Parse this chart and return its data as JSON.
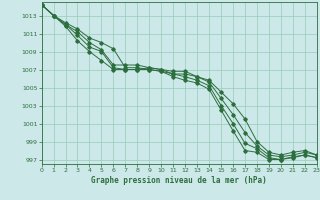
{
  "bg_color": "#cce8e8",
  "grid_color": "#99ccbb",
  "line_color": "#2d6e3e",
  "title": "Graphe pression niveau de la mer (hPa)",
  "xlim": [
    0,
    23
  ],
  "ylim": [
    996.5,
    1014.5
  ],
  "yticks": [
    997,
    999,
    1001,
    1003,
    1005,
    1007,
    1009,
    1011,
    1013
  ],
  "xticks": [
    0,
    1,
    2,
    3,
    4,
    5,
    6,
    7,
    8,
    9,
    10,
    11,
    12,
    13,
    14,
    15,
    16,
    17,
    18,
    19,
    20,
    21,
    22,
    23
  ],
  "series": [
    [
      1014.2,
      1013.0,
      1012.2,
      1011.5,
      1010.5,
      1010.0,
      1009.3,
      1007.2,
      1007.2,
      1007.0,
      1006.8,
      1006.5,
      1006.5,
      1006.2,
      1005.8,
      1004.5,
      1003.2,
      1001.5,
      999.0,
      997.8,
      997.5,
      997.8,
      998.0,
      997.5
    ],
    [
      1014.2,
      1013.0,
      1012.0,
      1011.2,
      1010.0,
      1009.2,
      1007.5,
      1007.5,
      1007.5,
      1007.2,
      1007.0,
      1006.8,
      1006.8,
      1006.2,
      1005.6,
      1003.8,
      1002.0,
      1000.0,
      998.5,
      997.5,
      997.3,
      997.5,
      997.8,
      997.5
    ],
    [
      1014.2,
      1013.0,
      1012.0,
      1010.8,
      1009.5,
      1009.0,
      1007.2,
      1007.0,
      1007.0,
      1007.2,
      1007.0,
      1006.5,
      1006.2,
      1005.8,
      1005.2,
      1003.0,
      1001.0,
      998.8,
      998.2,
      997.2,
      997.0,
      997.3,
      997.5,
      997.2
    ],
    [
      1014.2,
      1013.0,
      1011.8,
      1010.2,
      1009.0,
      1008.0,
      1007.0,
      1007.0,
      1007.0,
      1007.0,
      1006.8,
      1006.2,
      1005.8,
      1005.5,
      1004.8,
      1002.5,
      1000.2,
      998.0,
      997.8,
      997.0,
      997.0,
      997.2,
      997.5,
      997.2
    ]
  ]
}
